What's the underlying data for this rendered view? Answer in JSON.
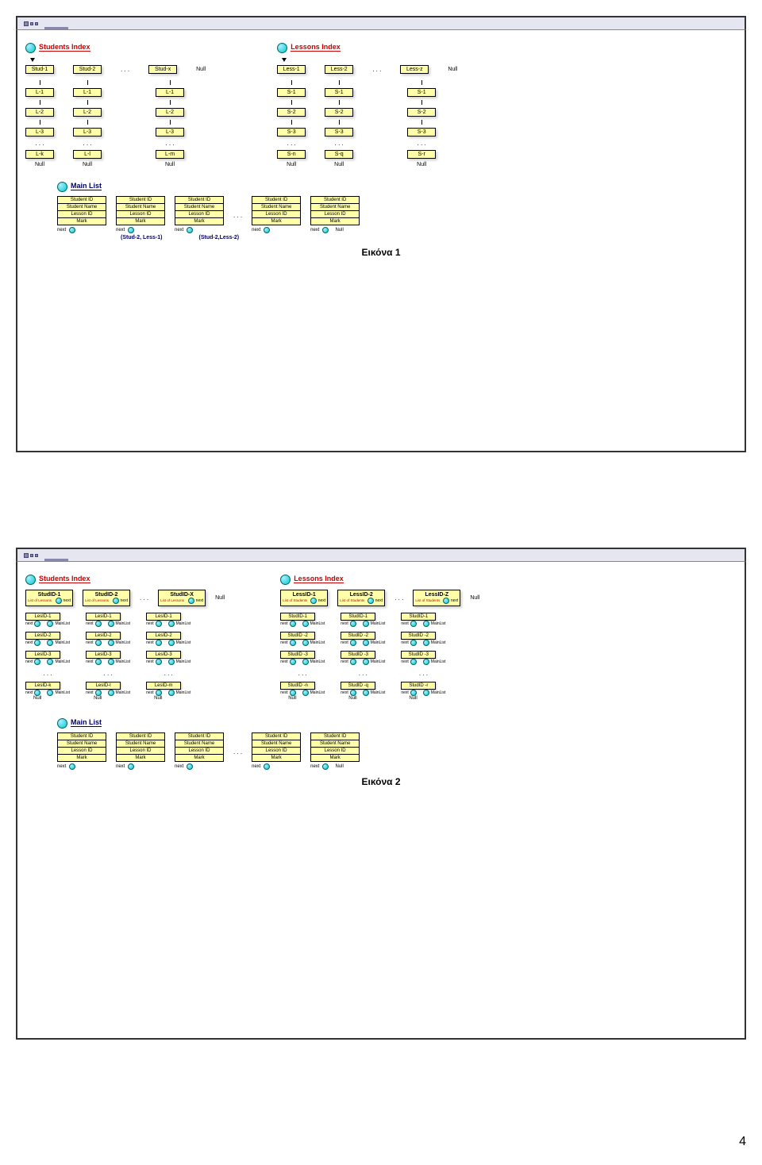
{
  "page_number": "4",
  "colors": {
    "node_bg": "#ffffaa",
    "node_border": "#000000",
    "index_label": "#cc0000",
    "ball": "#00cccc",
    "main_list_label": "#000066"
  },
  "diagram1": {
    "students_index_label": "Students Index",
    "lessons_index_label": "Lessons Index",
    "main_list_label": "Main List",
    "null_text": "Null",
    "dots": ". . .",
    "students_heads": [
      "Stud-1",
      "Stud-2",
      "Stud-x"
    ],
    "lessons_heads": [
      "Less-1",
      "Less-2",
      "Less-z"
    ],
    "student_columns": {
      "rows": [
        "L-1",
        "L-2",
        "L-3"
      ],
      "last_row": [
        "L-k",
        "L-l",
        "L-m"
      ]
    },
    "lesson_columns": {
      "rows": [
        "S-1",
        "S-2",
        "S-3"
      ],
      "last_row": [
        "S-n",
        "S-q",
        "S-r"
      ]
    },
    "records_count": 5,
    "record_fields": [
      "Student ID",
      "Student Name",
      "Lesson ID",
      "Mark"
    ],
    "record_next": "next",
    "annotations": [
      "(Stud-2, Less-1)",
      "(Stud-2,Less-2)"
    ],
    "caption": "Εικόνα 1"
  },
  "diagram2": {
    "students_index_label": "Students Index",
    "lessons_index_label": "Lessons Index",
    "main_list_label": "Main List",
    "null_text": "Null",
    "dots": ". . .",
    "student_heads": [
      {
        "id": "StudID-1",
        "sublabel": "List of Lessons",
        "next": "next"
      },
      {
        "id": "StudID-2",
        "sublabel": "List of Lessons",
        "next": "next"
      },
      {
        "id": "StudID-X",
        "sublabel": "List of Lessons",
        "next": "next"
      }
    ],
    "lesson_heads": [
      {
        "id": "LessID-1",
        "sublabel": "List of Students",
        "next": "next"
      },
      {
        "id": "LessID-2",
        "sublabel": "List of Students",
        "next": "next"
      },
      {
        "id": "LessID-Z",
        "sublabel": "List of Students",
        "next": "next"
      }
    ],
    "stud_rows": [
      [
        "LesID-1",
        "LesID-1",
        "LesID-1"
      ],
      [
        "LesID-2",
        "LesID-2",
        "LesID-2"
      ],
      [
        "LesID-3",
        "LesID-3",
        "LesID-3"
      ]
    ],
    "stud_last_row": [
      "LesID-k",
      "LesID-l",
      "LesID-m"
    ],
    "less_rows": [
      [
        "StudID-1",
        "StudID-1",
        "StudID-1"
      ],
      [
        "StudID -2",
        "StudID -2",
        "StudID -2"
      ],
      [
        "StudID -3",
        "StudID -3",
        "StudID -3"
      ]
    ],
    "less_last_row": [
      "StudID -n",
      "StudID -q",
      "StudID -r"
    ],
    "next_text": "next",
    "mainlist_text": "MainList",
    "records_count": 5,
    "record_fields": [
      "Student ID",
      "Student Name",
      "Lesson ID",
      "Mark"
    ],
    "record_next": "next",
    "caption": "Εικόνα 2"
  }
}
